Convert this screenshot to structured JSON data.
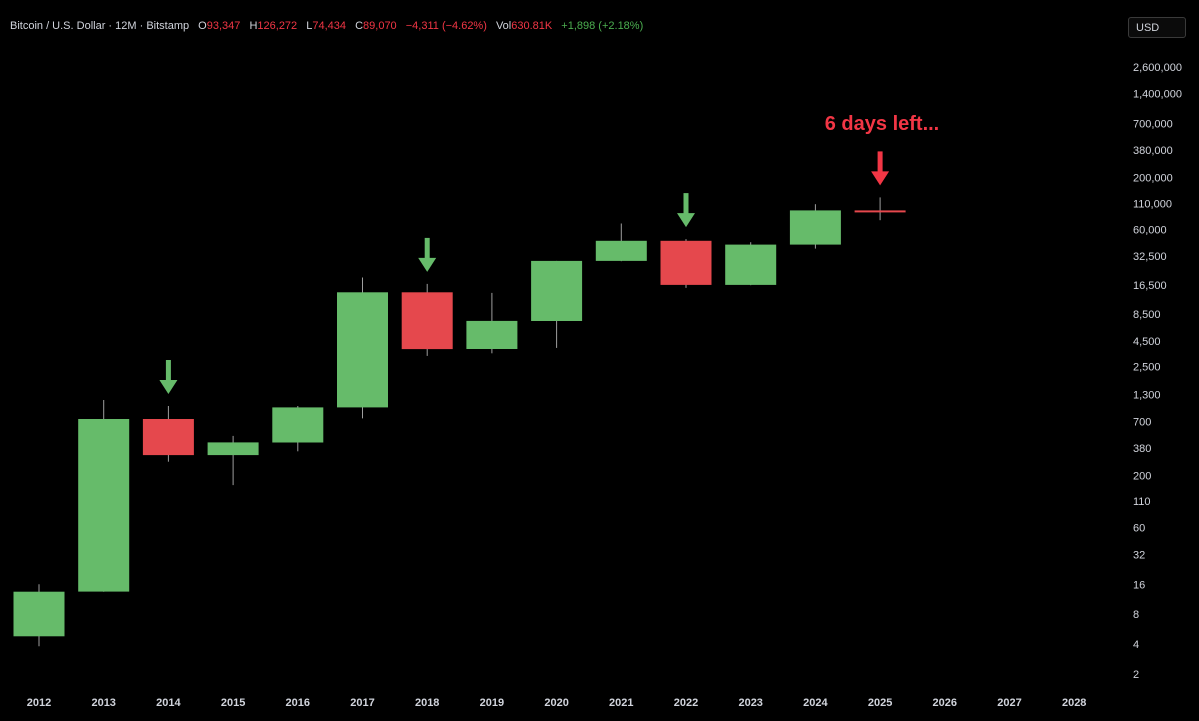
{
  "legend": {
    "symbol": "Bitcoin / U.S. Dollar · 12M · Bitstamp",
    "open_label": "O",
    "open": "93,347",
    "high_label": "H",
    "high": "126,272",
    "low_label": "L",
    "low": "74,434",
    "close_label": "C",
    "close": "89,070",
    "change": "−4,311 (−4.62%)",
    "vol_label": "Vol",
    "vol": "630.81K",
    "vol_change": "+1,898 (+2.18%)"
  },
  "currency_button": "USD",
  "colors": {
    "up": "#66bb6a",
    "down": "#e5484d",
    "background": "#000000",
    "annotation": "#f23645"
  },
  "chart_data": {
    "type": "candlestick",
    "title": "",
    "y_scale": "log",
    "ylim": [
      1.7,
      3600000
    ],
    "y_ticks": [
      "2,600,000",
      "1,400,000",
      "700,000",
      "380,000",
      "200,000",
      "110,000",
      "60,000",
      "32,500",
      "16,500",
      "8,500",
      "4,500",
      "2,500",
      "1,300",
      "700",
      "380",
      "200",
      "110",
      "60",
      "32",
      "16",
      "8",
      "4",
      "2"
    ],
    "x_ticks": [
      "2012",
      "2013",
      "2014",
      "2015",
      "2016",
      "2017",
      "2018",
      "2019",
      "2020",
      "2021",
      "2022",
      "2023",
      "2024",
      "2025",
      "2026",
      "2027",
      "2028"
    ],
    "candles": [
      {
        "year": "2012",
        "open": 4.8,
        "high": 16,
        "low": 3.8,
        "close": 13.5
      },
      {
        "year": "2013",
        "open": 13.5,
        "high": 1150,
        "low": 13.5,
        "close": 740
      },
      {
        "year": "2014",
        "open": 740,
        "high": 1000,
        "low": 275,
        "close": 320
      },
      {
        "year": "2015",
        "open": 320,
        "high": 500,
        "low": 160,
        "close": 430
      },
      {
        "year": "2016",
        "open": 430,
        "high": 1000,
        "low": 350,
        "close": 970
      },
      {
        "year": "2017",
        "open": 970,
        "high": 19700,
        "low": 750,
        "close": 14000
      },
      {
        "year": "2018",
        "open": 14000,
        "high": 17000,
        "low": 3200,
        "close": 3750
      },
      {
        "year": "2019",
        "open": 3750,
        "high": 13800,
        "low": 3400,
        "close": 7200
      },
      {
        "year": "2020",
        "open": 7200,
        "high": 29000,
        "low": 3850,
        "close": 29000
      },
      {
        "year": "2021",
        "open": 29000,
        "high": 69000,
        "low": 28800,
        "close": 46200
      },
      {
        "year": "2022",
        "open": 46200,
        "high": 48000,
        "low": 15500,
        "close": 16600
      },
      {
        "year": "2023",
        "open": 16600,
        "high": 44700,
        "low": 16500,
        "close": 42300
      },
      {
        "year": "2024",
        "open": 42300,
        "high": 108000,
        "low": 38500,
        "close": 93400
      },
      {
        "year": "2025",
        "open": 93347,
        "high": 126272,
        "low": 74434,
        "close": 89070
      }
    ],
    "markers": [
      {
        "year": "2014",
        "color": "#66bb6a"
      },
      {
        "year": "2018",
        "color": "#66bb6a"
      },
      {
        "year": "2022",
        "color": "#66bb6a"
      },
      {
        "year": "2025",
        "color": "#f23645"
      }
    ],
    "annotation": "6 days left..."
  }
}
